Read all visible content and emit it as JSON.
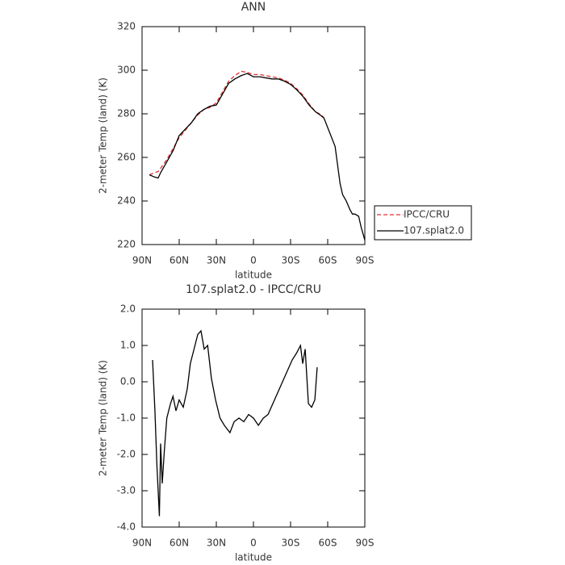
{
  "chart_data": [
    {
      "type": "line",
      "title": "ANN",
      "xlabel": "latitude",
      "ylabel": "2-meter Temp (land) (K)",
      "x": [
        84,
        80,
        77,
        75,
        70,
        65,
        60,
        55,
        50,
        45,
        40,
        35,
        30,
        25,
        20,
        15,
        10,
        5,
        0,
        -5,
        -10,
        -15,
        -20,
        -25,
        -30,
        -35,
        -40,
        -45,
        -50,
        -55,
        -57,
        -66,
        -70,
        -72,
        -75,
        -78,
        -80,
        -82,
        -85,
        -87,
        -90
      ],
      "series": [
        {
          "name": "IPCC/CRU",
          "color": "#e03030",
          "dashed": true,
          "values": [
            252,
            253,
            253.5,
            255,
            259,
            264,
            269,
            272.5,
            276,
            279.5,
            282,
            283,
            285,
            290,
            295,
            297.5,
            299.5,
            299,
            298,
            298,
            297.5,
            297,
            296.5,
            295.5,
            294,
            291.5,
            288.5,
            284.5,
            281,
            279.5,
            278,
            null,
            null,
            null,
            null,
            null,
            null,
            null,
            null,
            null,
            null
          ]
        },
        {
          "name": "107.splat2.0",
          "color": "#000000",
          "dashed": false,
          "values": [
            252,
            251,
            250.5,
            253,
            258,
            263,
            270,
            273,
            276,
            280,
            282,
            283.5,
            284,
            289,
            294,
            296,
            297.5,
            298.5,
            297,
            297,
            296.5,
            296,
            296,
            295,
            293.5,
            291,
            288,
            284,
            281,
            279,
            278,
            265,
            248,
            243,
            240,
            236,
            234,
            234,
            233,
            228,
            222
          ]
        }
      ],
      "xlim": [
        90,
        -90
      ],
      "xticks": [
        {
          "value": 90,
          "label": "90N"
        },
        {
          "value": 60,
          "label": "60N"
        },
        {
          "value": 30,
          "label": "30N"
        },
        0,
        {
          "value": -30,
          "label": "30S"
        },
        {
          "value": -60,
          "label": "60S"
        },
        {
          "value": -90,
          "label": "90S"
        }
      ],
      "ylim": [
        220,
        320
      ],
      "yticks": [
        220,
        240,
        260,
        280,
        300,
        320
      ],
      "legend": "right"
    },
    {
      "type": "line",
      "title": "107.splat2.0 - IPCC/CRU",
      "xlabel": "latitude",
      "ylabel": "2-meter Temp (land) (K)",
      "x": [
        81.5,
        79.6,
        78,
        76,
        75,
        73.7,
        72,
        70,
        67,
        65,
        62.6,
        60,
        56.7,
        53.5,
        51,
        48,
        45,
        42.4,
        39.8,
        37,
        34,
        30.6,
        27,
        23.5,
        19,
        15.6,
        11.7,
        7.8,
        3.9,
        0,
        -4,
        -8,
        -11.8,
        -15.7,
        -19.6,
        -23.5,
        -27.4,
        -31.3,
        -35,
        -38,
        -39.8,
        -41.8,
        -44.4,
        -47,
        -49.6,
        -51.5
      ],
      "series": [
        {
          "name": "107.splat2.0",
          "color": "#000000",
          "dashed": false,
          "values": [
            0.6,
            -0.8,
            -2.3,
            -3.7,
            -1.7,
            -2.8,
            -1.9,
            -1.0,
            -0.6,
            -0.4,
            -0.8,
            -0.5,
            -0.7,
            -0.2,
            0.5,
            0.9,
            1.3,
            1.4,
            0.9,
            1.0,
            0.1,
            -0.5,
            -1.0,
            -1.2,
            -1.4,
            -1.1,
            -1.0,
            -1.1,
            -0.9,
            -1.0,
            -1.2,
            -1.0,
            -0.9,
            -0.6,
            -0.3,
            0.0,
            0.3,
            0.6,
            0.8,
            1.0,
            0.5,
            0.9,
            -0.6,
            -0.7,
            -0.5,
            0.4
          ]
        }
      ],
      "xlim": [
        90,
        -90
      ],
      "xticks": [
        {
          "value": 90,
          "label": "90N"
        },
        {
          "value": 60,
          "label": "60N"
        },
        {
          "value": 30,
          "label": "30N"
        },
        0,
        {
          "value": -30,
          "label": "30S"
        },
        {
          "value": -60,
          "label": "60S"
        },
        {
          "value": -90,
          "label": "90S"
        }
      ],
      "ylim": [
        -4,
        2
      ],
      "yticks": [
        {
          "value": -4,
          "label": "-4.0"
        },
        {
          "value": -3,
          "label": "-3.0"
        },
        {
          "value": -2,
          "label": "-2.0"
        },
        {
          "value": -1,
          "label": "-1.0"
        },
        {
          "value": 0,
          "label": "0.0"
        },
        {
          "value": 1,
          "label": "1.0"
        },
        {
          "value": 2,
          "label": "2.0"
        }
      ]
    }
  ]
}
